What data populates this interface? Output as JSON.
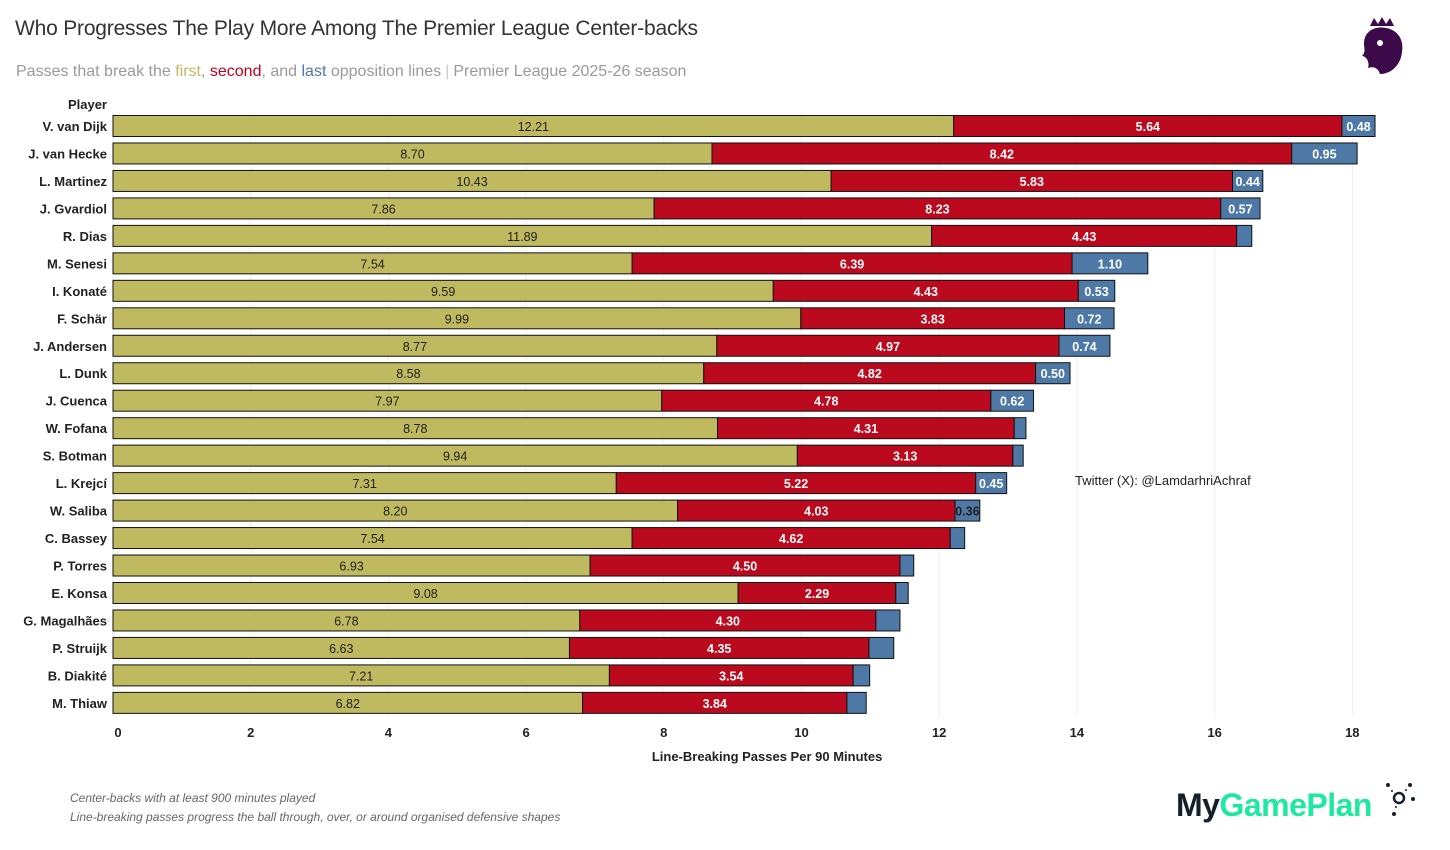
{
  "header": {
    "title": "Who Progresses The Play More Among The Premier League Center-backs",
    "subtitle": {
      "prefix": "Passes that break the ",
      "first": "first",
      "comma1": ", ",
      "second": "second",
      "mid": ", and ",
      "last": "last",
      "suffix": " opposition lines",
      "separator": "|",
      "season": "Premier League 2025-26 season"
    }
  },
  "watermark": "Twitter (X): @LamdarhriAchraf",
  "footnotes": [
    "Center-backs with at least 900 minutes played",
    "Line-breaking passes progress the ball through, over, or around organised defensive shapes"
  ],
  "brand": {
    "my": "My",
    "gameplan": "GamePlan"
  },
  "colors": {
    "first": "#bfb95f",
    "second": "#bb0a1e",
    "last": "#4e79a7"
  },
  "chart_data": {
    "type": "bar",
    "orientation": "horizontal-stacked",
    "title": "Who Progresses The Play More Among The Premier League Center-backs",
    "xlabel": "Line-Breaking Passes Per 90 Minutes",
    "ylabel": "Player",
    "xlim": [
      0,
      19
    ],
    "xticks": [
      0,
      2,
      4,
      6,
      8,
      10,
      12,
      14,
      16,
      18
    ],
    "grid": true,
    "categories": [
      "V. van Dijk",
      "J. van Hecke",
      "L. Martinez",
      "J. Gvardiol",
      "R. Dias",
      "M. Senesi",
      "I. Konaté",
      "F. Schär",
      "J. Andersen",
      "L. Dunk",
      "J. Cuenca",
      "W. Fofana",
      "S. Botman",
      "L. Krejcí",
      "W. Saliba",
      "C. Bassey",
      "P. Torres",
      "E. Konsa",
      "G. Magalhães",
      "P. Struijk",
      "B. Diakité",
      "M. Thiaw"
    ],
    "series": [
      {
        "name": "first",
        "values": [
          12.21,
          8.7,
          10.43,
          7.86,
          11.89,
          7.54,
          9.59,
          9.99,
          8.77,
          8.58,
          7.97,
          8.78,
          9.94,
          7.31,
          8.2,
          7.54,
          6.93,
          9.08,
          6.78,
          6.63,
          7.21,
          6.82
        ]
      },
      {
        "name": "second",
        "values": [
          5.64,
          8.42,
          5.83,
          8.23,
          4.43,
          6.39,
          4.43,
          3.83,
          4.97,
          4.82,
          4.78,
          4.31,
          3.13,
          5.22,
          4.03,
          4.62,
          4.5,
          2.29,
          4.3,
          4.35,
          3.54,
          3.84
        ]
      },
      {
        "name": "last",
        "values": [
          0.48,
          0.95,
          0.44,
          0.57,
          0.22,
          1.1,
          0.53,
          0.72,
          0.74,
          0.5,
          0.62,
          0.17,
          0.15,
          0.45,
          0.36,
          0.21,
          0.2,
          0.18,
          0.35,
          0.36,
          0.24,
          0.28
        ],
        "labeled": [
          true,
          true,
          true,
          true,
          false,
          true,
          true,
          true,
          true,
          true,
          true,
          false,
          false,
          true,
          true,
          false,
          false,
          false,
          false,
          false,
          false,
          false
        ]
      }
    ]
  }
}
